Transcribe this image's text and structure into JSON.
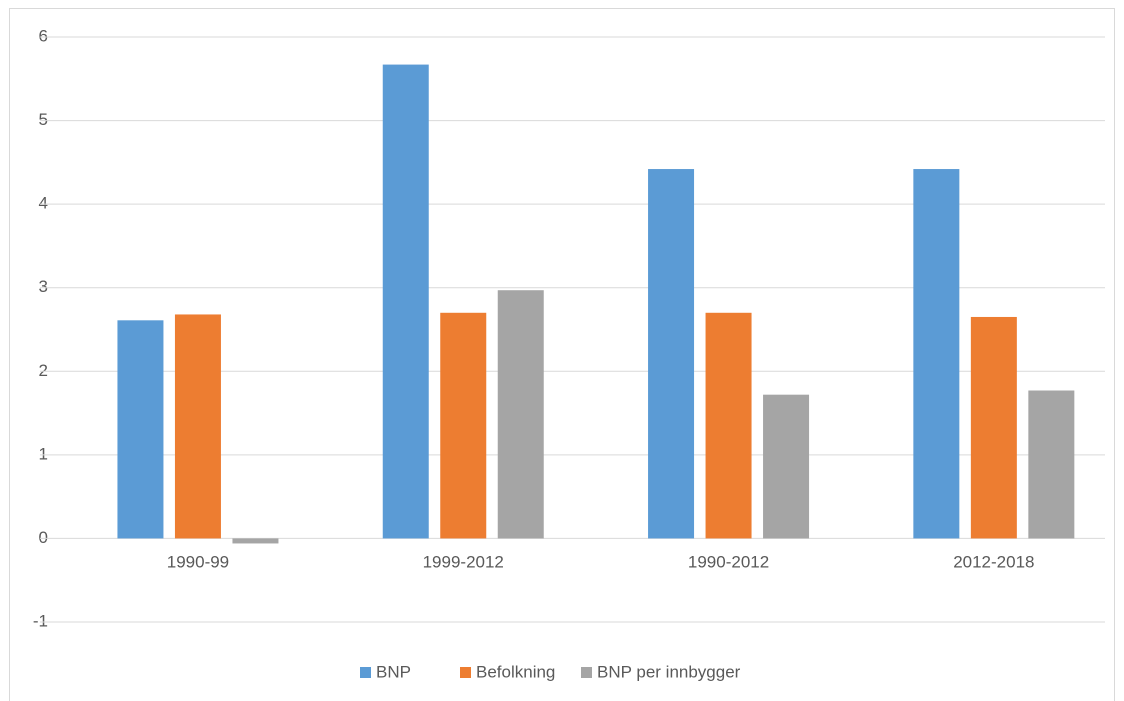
{
  "chart_data": {
    "type": "bar",
    "categories": [
      "1990-99",
      "1999-2012",
      "1990-2012",
      "2012-2018"
    ],
    "series": [
      {
        "name": "BNP",
        "color": "#5b9bd5",
        "values": [
          2.61,
          5.67,
          4.42,
          4.42
        ]
      },
      {
        "name": "Befolkning",
        "color": "#ed7d31",
        "values": [
          2.68,
          2.7,
          2.7,
          2.65
        ]
      },
      {
        "name": "BNP per innbygger",
        "color": "#a5a5a5",
        "values": [
          -0.06,
          2.97,
          1.72,
          1.77
        ]
      }
    ],
    "ylim": [
      -1,
      6
    ],
    "yticks": [
      -1,
      0,
      1,
      2,
      3,
      4,
      5,
      6
    ],
    "grid": true,
    "legend": "bottom"
  }
}
